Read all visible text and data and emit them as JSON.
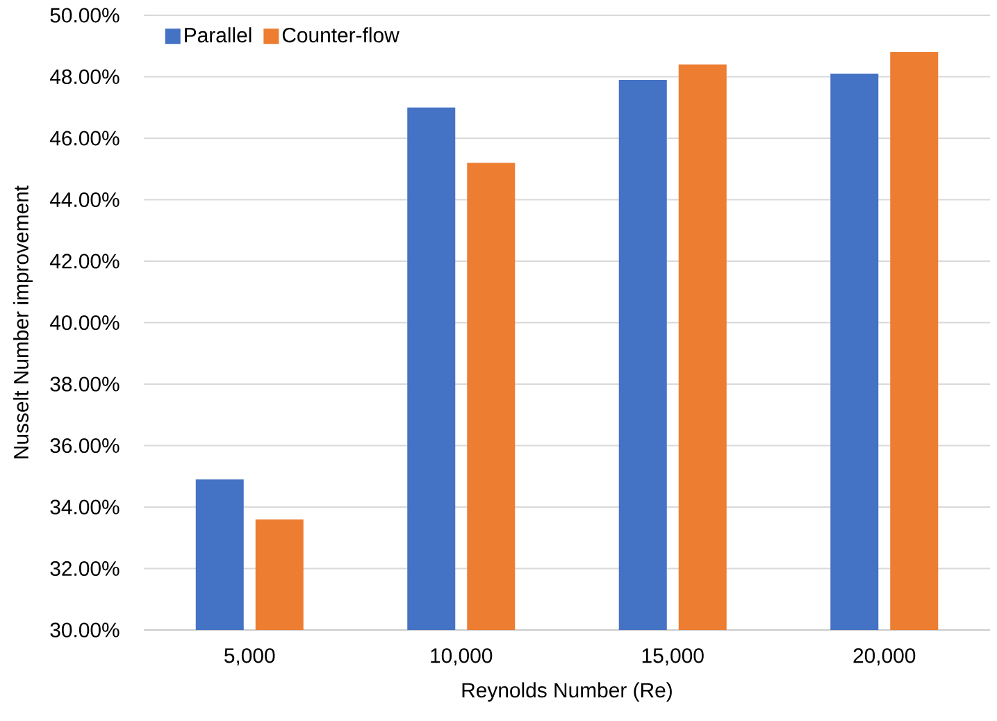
{
  "chart_data": {
    "type": "bar",
    "xlabel": "Reynolds Number (Re)",
    "ylabel": "Nusselt Number improvement",
    "categories": [
      "5,000",
      "10,000",
      "15,000",
      "20,000"
    ],
    "series": [
      {
        "name": "Parallel",
        "color": "#4472c4",
        "values": [
          34.9,
          47.0,
          47.9,
          48.1
        ]
      },
      {
        "name": "Counter-flow",
        "color": "#ed7d31",
        "values": [
          33.6,
          45.2,
          48.4,
          48.8
        ]
      }
    ],
    "ylim": [
      30,
      50
    ],
    "yticks": [
      {
        "value": 30,
        "label": "30.00%"
      },
      {
        "value": 32,
        "label": "32.00%"
      },
      {
        "value": 34,
        "label": "34.00%"
      },
      {
        "value": 36,
        "label": "36.00%"
      },
      {
        "value": 38,
        "label": "38.00%"
      },
      {
        "value": 40,
        "label": "40.00%"
      },
      {
        "value": 42,
        "label": "42.00%"
      },
      {
        "value": 44,
        "label": "44.00%"
      },
      {
        "value": 46,
        "label": "46.00%"
      },
      {
        "value": 48,
        "label": "48.00%"
      },
      {
        "value": 50,
        "label": "50.00%"
      }
    ],
    "grid": "y",
    "legend": "top left"
  }
}
